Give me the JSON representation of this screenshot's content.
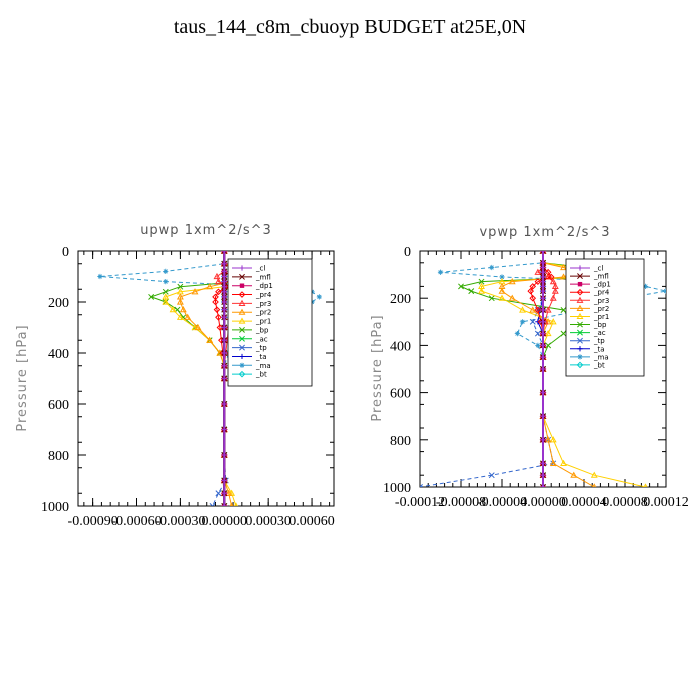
{
  "page": {
    "title": "taus_144_c8m_cbuoyp  BUDGET at25E,0N"
  },
  "chart_data": [
    {
      "type": "line",
      "title": "upwp   1xm^2/s^3",
      "ylabel": "Pressure [hPa]",
      "xlabel": "",
      "xlim": [
        -0.001,
        0.00075
      ],
      "ylim": [
        1000,
        0
      ],
      "x_ticks": [
        -0.0009,
        -0.0006,
        -0.0003,
        0.0,
        0.0003,
        0.0006
      ],
      "x_tick_labels": [
        "-0.00090",
        "-0.00060",
        "-0.00030",
        "0.00000",
        "0.00030",
        "0.00060"
      ],
      "y_ticks": [
        0,
        200,
        400,
        600,
        800,
        1000
      ],
      "y_tick_labels": [
        "0",
        "200",
        "400",
        "600",
        "800",
        "1000"
      ],
      "grid": false,
      "legend_position": "right",
      "pressure": [
        0,
        50,
        80,
        100,
        120,
        140,
        160,
        180,
        200,
        230,
        260,
        300,
        350,
        400,
        450,
        500,
        600,
        700,
        800,
        900,
        950,
        1000
      ],
      "series": [
        {
          "name": "_cl",
          "color": "#9933cc",
          "marker": "plus",
          "values": [
            0,
            0,
            0,
            0,
            0,
            0,
            0,
            0,
            0,
            0,
            0,
            0,
            0,
            0,
            0,
            0,
            0,
            0,
            0,
            0,
            0,
            0
          ]
        },
        {
          "name": "_mfl",
          "color": "#660000",
          "marker": "x",
          "values": [
            0,
            0,
            0,
            0,
            0,
            0,
            0,
            0,
            0,
            0,
            0,
            0,
            0,
            0,
            0,
            0,
            0,
            0,
            0,
            0,
            0,
            0
          ]
        },
        {
          "name": "_dp1",
          "color": "#cc0066",
          "marker": "square",
          "values": [
            0,
            0,
            0,
            0,
            0,
            0,
            0,
            0,
            0,
            0,
            0,
            0,
            0,
            0,
            0,
            0,
            0,
            0,
            0,
            0,
            0,
            0
          ]
        },
        {
          "name": "_pr4",
          "color": "#ff0000",
          "marker": "diamond",
          "values": [
            0,
            0,
            0,
            5e-05,
            4e-05,
            3e-05,
            -4e-05,
            -6e-05,
            -6e-05,
            -5e-05,
            -4e-05,
            -3e-05,
            -2e-05,
            -1e-05,
            0,
            0,
            0,
            0,
            0,
            0,
            0,
            0
          ]
        },
        {
          "name": "_pr3",
          "color": "#ff3333",
          "marker": "triangle",
          "values": [
            0,
            0,
            0,
            -5e-05,
            -4e-05,
            5e-05,
            5e-05,
            6e-05,
            6e-05,
            5e-05,
            4e-05,
            3e-05,
            2e-05,
            1e-05,
            0,
            0,
            0,
            0,
            0,
            0,
            0,
            0
          ]
        },
        {
          "name": "_pr2",
          "color": "#ff9900",
          "marker": "triangle",
          "values": [
            0,
            0,
            0.0001,
            0.0001,
            5e-05,
            -0.0001,
            -0.0002,
            -0.0003,
            -0.0003,
            -0.00028,
            -0.00025,
            -0.00018,
            -0.0001,
            -3e-05,
            0,
            0,
            0,
            0,
            0,
            0,
            3e-05,
            5e-05
          ]
        },
        {
          "name": "_pr1",
          "color": "#ffd000",
          "marker": "triangle",
          "values": [
            0,
            0,
            0.0002,
            0.0003,
            0.0002,
            0,
            -0.0003,
            -0.0004,
            -0.0004,
            -0.00035,
            -0.0003,
            -0.0002,
            -0.0001,
            -3e-05,
            0,
            0,
            0,
            0,
            0,
            0,
            5e-05,
            8e-05
          ]
        },
        {
          "name": "_bp",
          "color": "#33aa00",
          "marker": "x",
          "values": [
            0,
            0,
            0.0002,
            0.0003,
            0.0001,
            -0.0003,
            -0.0004,
            -0.0005,
            -0.0004,
            -0.00032,
            -0.00028,
            -0.0002,
            -0.0001,
            -3e-05,
            0,
            0,
            0,
            0,
            0,
            0,
            0,
            0
          ]
        },
        {
          "name": "_ac",
          "color": "#00cc33",
          "marker": "x",
          "values": [
            0,
            0,
            0,
            0,
            0,
            0,
            0,
            0,
            0,
            0,
            0,
            0,
            0,
            0,
            0,
            0,
            0,
            0,
            0,
            0,
            0,
            0
          ]
        },
        {
          "name": "_tp",
          "color": "#3366cc",
          "marker": "x",
          "values": [
            0,
            0,
            0,
            0,
            0,
            0,
            0,
            0,
            0,
            0,
            0,
            0,
            0,
            0,
            0,
            0,
            0,
            0,
            0,
            1e-05,
            -4e-05,
            -8e-05
          ]
        },
        {
          "name": "_ta",
          "color": "#0000cc",
          "marker": "plus",
          "values": [
            0,
            0,
            0,
            0,
            0,
            0,
            0,
            0,
            0,
            0,
            0,
            0,
            0,
            0,
            0,
            0,
            0,
            0,
            0,
            0,
            0,
            0
          ]
        },
        {
          "name": "_ma",
          "color": "#3399cc",
          "marker": "star",
          "values": [
            0,
            0,
            -0.0004,
            -0.00085,
            -0.0004,
            0.0003,
            0.0006,
            0.00065,
            0.0006,
            0.0005,
            0.0004,
            0.0002,
            0.0001,
            3e-05,
            0,
            0,
            0,
            0,
            0,
            0,
            0,
            0
          ]
        },
        {
          "name": "_bt",
          "color": "#00cccc",
          "marker": "diamond",
          "values": [
            0,
            0,
            0,
            0,
            0,
            0,
            0,
            0,
            0,
            0,
            0,
            0,
            0,
            0,
            0,
            0,
            0,
            0,
            0,
            0,
            0,
            0
          ]
        }
      ]
    },
    {
      "type": "line",
      "title": "vpwp   1xm^2/s^3",
      "ylabel": "Pressure [hPa]",
      "xlabel": "",
      "xlim": [
        -0.00012,
        0.00012
      ],
      "ylim": [
        1000,
        0
      ],
      "x_ticks": [
        -0.00012,
        -8e-05,
        -4e-05,
        0.0,
        4e-05,
        8e-05,
        0.00012
      ],
      "x_tick_labels": [
        "-0.00012",
        "-0.00008",
        "-0.00004",
        "0.00000",
        "0.00004",
        "0.00008",
        "0.00012"
      ],
      "y_ticks": [
        0,
        200,
        400,
        600,
        800,
        1000
      ],
      "y_tick_labels": [
        "0",
        "200",
        "400",
        "600",
        "800",
        "1000"
      ],
      "grid": false,
      "legend_position": "right",
      "pressure": [
        0,
        50,
        70,
        90,
        110,
        130,
        150,
        170,
        200,
        250,
        300,
        350,
        400,
        450,
        500,
        600,
        700,
        800,
        900,
        950,
        1000
      ],
      "series": [
        {
          "name": "_cl",
          "color": "#9933cc",
          "marker": "plus",
          "values": [
            0,
            0,
            0,
            0,
            0,
            0,
            0,
            0,
            0,
            0,
            0,
            0,
            0,
            0,
            0,
            0,
            0,
            0,
            0,
            0,
            0
          ]
        },
        {
          "name": "_mfl",
          "color": "#660000",
          "marker": "x",
          "values": [
            0,
            0,
            0,
            0,
            0,
            0,
            0,
            0,
            0,
            0,
            0,
            0,
            0,
            0,
            0,
            0,
            0,
            0,
            0,
            0,
            0
          ]
        },
        {
          "name": "_dp1",
          "color": "#cc0066",
          "marker": "square",
          "values": [
            0,
            0,
            0,
            0,
            0,
            0,
            0,
            0,
            0,
            0,
            0,
            0,
            0,
            0,
            0,
            0,
            0,
            0,
            0,
            0,
            0
          ]
        },
        {
          "name": "_pr4",
          "color": "#ff0000",
          "marker": "diamond",
          "values": [
            0,
            0,
            0,
            5e-06,
            8e-06,
            -5e-06,
            -1e-05,
            -1.2e-05,
            -1e-05,
            -5e-06,
            -2e-06,
            0,
            0,
            0,
            0,
            0,
            0,
            0,
            0,
            0,
            0
          ]
        },
        {
          "name": "_pr3",
          "color": "#ff3333",
          "marker": "triangle",
          "values": [
            0,
            0,
            0,
            -5e-06,
            5e-06,
            1e-05,
            1.2e-05,
            1.2e-05,
            1e-05,
            5e-06,
            2e-06,
            0,
            0,
            0,
            0,
            0,
            0,
            0,
            0,
            0,
            0
          ]
        },
        {
          "name": "_pr2",
          "color": "#ff9900",
          "marker": "triangle",
          "values": [
            0,
            0,
            2e-05,
            3e-05,
            2e-05,
            -3e-05,
            -4e-05,
            -4e-05,
            -3e-05,
            -1e-05,
            5e-06,
            0,
            0,
            0,
            0,
            0,
            0,
            5e-06,
            1e-05,
            3e-05,
            5e-05
          ]
        },
        {
          "name": "_pr1",
          "color": "#ffd000",
          "marker": "triangle",
          "values": [
            0,
            0,
            3e-05,
            4e-05,
            3e-05,
            -4e-05,
            -6e-05,
            -6e-05,
            -4e-05,
            -2e-05,
            1e-05,
            5e-06,
            0,
            0,
            0,
            0,
            0,
            1e-05,
            2e-05,
            5e-05,
            0.0001
          ]
        },
        {
          "name": "_bp",
          "color": "#33aa00",
          "marker": "x",
          "values": [
            0,
            0,
            4e-05,
            6e-05,
            4e-05,
            -6e-05,
            -8e-05,
            -7e-05,
            -5e-05,
            2e-05,
            3e-05,
            2e-05,
            5e-06,
            0,
            0,
            0,
            0,
            0,
            0,
            0,
            0
          ]
        },
        {
          "name": "_ac",
          "color": "#00cc33",
          "marker": "x",
          "values": [
            0,
            0,
            0,
            0,
            0,
            0,
            0,
            0,
            0,
            0,
            0,
            0,
            0,
            0,
            0,
            0,
            0,
            0,
            0,
            0,
            0
          ]
        },
        {
          "name": "_tp",
          "color": "#3366cc",
          "marker": "x",
          "values": [
            0,
            0,
            0,
            0,
            0,
            0,
            0,
            0,
            0,
            -5e-06,
            -1e-05,
            -5e-06,
            0,
            0,
            0,
            0,
            0,
            5e-06,
            1e-05,
            -5e-05,
            -0.00012
          ]
        },
        {
          "name": "_ta",
          "color": "#0000cc",
          "marker": "plus",
          "values": [
            0,
            0,
            0,
            0,
            0,
            0,
            0,
            0,
            0,
            -3e-06,
            -5e-06,
            0,
            0,
            0,
            0,
            0,
            0,
            0,
            0,
            0,
            0
          ]
        },
        {
          "name": "_ma",
          "color": "#3399cc",
          "marker": "star",
          "values": [
            0,
            0,
            -5e-05,
            -0.0001,
            -4e-05,
            8e-05,
            0.0001,
            0.00012,
            8e-05,
            4e-05,
            -2e-05,
            -2.5e-05,
            -5e-06,
            0,
            0,
            0,
            0,
            0,
            0,
            0,
            0
          ]
        },
        {
          "name": "_bt",
          "color": "#00cccc",
          "marker": "diamond",
          "values": [
            0,
            0,
            0,
            0,
            0,
            0,
            0,
            0,
            0,
            0,
            0,
            0,
            0,
            0,
            0,
            0,
            0,
            0,
            0,
            0,
            0
          ]
        }
      ]
    }
  ]
}
